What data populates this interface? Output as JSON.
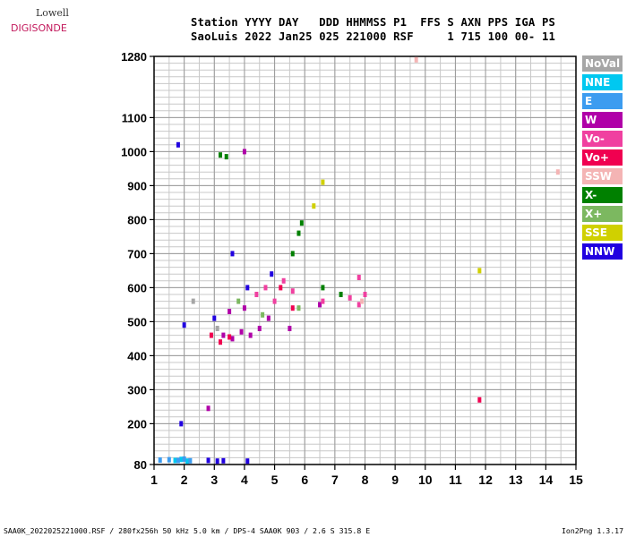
{
  "logo": {
    "line1": "Lowell",
    "line2": "DIGISONDE"
  },
  "header": {
    "line1": "Station YYYY DAY   DDD HHMMSS P1  FFS S AXN PPS IGA PS",
    "line2": "SaoLuis 2022 Jan25 025 221000 RSF     1 715 100 00- 11"
  },
  "legend": [
    {
      "label": "NoVal",
      "color": "#a6a6a6"
    },
    {
      "label": "NNE",
      "color": "#00c8f0"
    },
    {
      "label": "E",
      "color": "#3c9cf0"
    },
    {
      "label": "W",
      "color": "#b000a8"
    },
    {
      "label": "Vo-",
      "color": "#f040a0"
    },
    {
      "label": "Vo+",
      "color": "#f00050"
    },
    {
      "label": "SSW",
      "color": "#f4b4b4"
    },
    {
      "label": "X-",
      "color": "#008000"
    },
    {
      "label": "X+",
      "color": "#7cb860"
    },
    {
      "label": "SSE",
      "color": "#d0d000"
    },
    {
      "label": "NNW",
      "color": "#2000e0"
    }
  ],
  "footer": {
    "left": "SAA0K_2022025221000.RSF / 280fx256h 50 kHz 5.0 km / DPS-4 SAA0K 903 / 2.6 S 315.8 E",
    "right": "Ion2Png 1.3.17"
  },
  "chart_data": {
    "type": "scatter",
    "xlim": [
      1,
      15
    ],
    "ylim": [
      80,
      1280
    ],
    "x_ticks": [
      1,
      2,
      3,
      4,
      5,
      6,
      7,
      8,
      9,
      10,
      11,
      12,
      13,
      14,
      15
    ],
    "y_ticks": [
      80,
      200,
      300,
      400,
      500,
      600,
      700,
      800,
      900,
      1000,
      1100,
      1280
    ],
    "grid": true,
    "series": [
      {
        "name": "NoVal",
        "color": "#a6a6a6",
        "points": [
          [
            2.3,
            560
          ],
          [
            3.1,
            480
          ]
        ]
      },
      {
        "name": "NNE",
        "color": "#00c8f0",
        "points": [
          [
            1.7,
            92
          ],
          [
            1.9,
            95
          ],
          [
            2.1,
            90
          ]
        ]
      },
      {
        "name": "E",
        "color": "#3c9cf0",
        "points": [
          [
            1.2,
            93
          ],
          [
            1.5,
            94
          ],
          [
            1.8,
            92
          ],
          [
            2.0,
            96
          ],
          [
            2.2,
            91
          ]
        ]
      },
      {
        "name": "W",
        "color": "#b000a8",
        "points": [
          [
            3.3,
            460
          ],
          [
            3.6,
            450
          ],
          [
            3.9,
            470
          ],
          [
            4.2,
            460
          ],
          [
            4.5,
            480
          ],
          [
            3.5,
            530
          ],
          [
            4.0,
            540
          ],
          [
            4.8,
            510
          ],
          [
            2.8,
            245
          ],
          [
            4.0,
            1000
          ],
          [
            5.5,
            480
          ],
          [
            6.5,
            550
          ]
        ]
      },
      {
        "name": "Vo-",
        "color": "#f040a0",
        "points": [
          [
            4.4,
            580
          ],
          [
            4.7,
            600
          ],
          [
            5.0,
            560
          ],
          [
            5.3,
            620
          ],
          [
            5.6,
            590
          ],
          [
            6.6,
            560
          ],
          [
            7.5,
            570
          ],
          [
            7.8,
            550
          ],
          [
            8.0,
            580
          ],
          [
            7.8,
            630
          ]
        ]
      },
      {
        "name": "Vo+",
        "color": "#f00050",
        "points": [
          [
            2.9,
            460
          ],
          [
            3.2,
            440
          ],
          [
            3.5,
            455
          ],
          [
            5.2,
            600
          ],
          [
            5.6,
            540
          ],
          [
            11.8,
            270
          ]
        ]
      },
      {
        "name": "SSW",
        "color": "#f4b4b4",
        "points": [
          [
            14.4,
            940
          ],
          [
            9.7,
            1270
          ],
          [
            7.9,
            560
          ]
        ]
      },
      {
        "name": "X-",
        "color": "#008000",
        "points": [
          [
            3.2,
            990
          ],
          [
            3.4,
            985
          ],
          [
            5.6,
            700
          ],
          [
            5.8,
            760
          ],
          [
            5.9,
            790
          ],
          [
            6.6,
            600
          ],
          [
            7.2,
            580
          ]
        ]
      },
      {
        "name": "X+",
        "color": "#7cb860",
        "points": [
          [
            3.8,
            560
          ],
          [
            4.6,
            520
          ],
          [
            5.8,
            540
          ]
        ]
      },
      {
        "name": "SSE",
        "color": "#d0d000",
        "points": [
          [
            6.3,
            840
          ],
          [
            6.6,
            910
          ],
          [
            11.8,
            650
          ]
        ]
      },
      {
        "name": "NNW",
        "color": "#2000e0",
        "points": [
          [
            1.8,
            1020
          ],
          [
            2.0,
            490
          ],
          [
            3.0,
            510
          ],
          [
            3.6,
            700
          ],
          [
            4.1,
            600
          ],
          [
            4.9,
            640
          ],
          [
            1.9,
            200
          ],
          [
            2.8,
            92
          ],
          [
            3.1,
            90
          ],
          [
            3.3,
            91
          ],
          [
            4.1,
            90
          ]
        ]
      }
    ]
  }
}
